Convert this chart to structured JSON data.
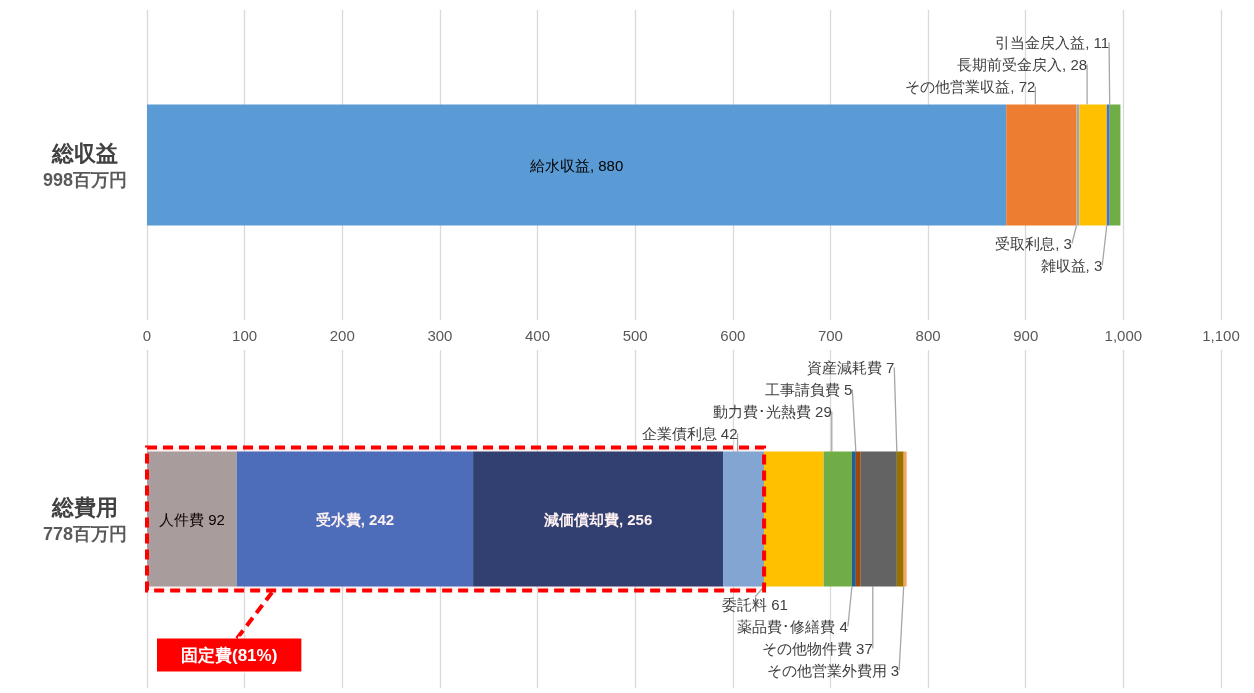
{
  "chart_data": [
    {
      "type": "bar",
      "orientation": "horizontal",
      "stacked": true,
      "categories": [
        "総収益\n998百万円"
      ],
      "xlim": [
        0,
        1100
      ],
      "xticks": [
        0,
        100,
        200,
        300,
        400,
        500,
        600,
        700,
        800,
        900,
        {
          "value": 1000,
          "label": "1,000"
        },
        {
          "value": 1100,
          "label": "1,100"
        }
      ],
      "grid": "x",
      "series": [
        {
          "color": "#5b9bd5",
          "values": [
            880
          ],
          "value_labels": [
            "給水収益, 880"
          ]
        },
        {
          "color": "#ed7d31",
          "values": [
            72
          ],
          "value_labels": [
            "その他営業収益, 72"
          ]
        },
        {
          "color": "#a5a5a5",
          "values": [
            3
          ],
          "value_labels": [
            "受取利息, 3"
          ]
        },
        {
          "color": "#ffc000",
          "values": [
            28
          ],
          "value_labels": [
            "長期前受金戻入, 28"
          ]
        },
        {
          "color": "#4472c4",
          "values": [
            3
          ],
          "value_labels": [
            "雑収益, 3"
          ]
        },
        {
          "color": "#70ad47",
          "values": [
            11
          ],
          "value_labels": [
            "引当金戻入益, 11"
          ]
        }
      ]
    },
    {
      "type": "bar",
      "orientation": "horizontal",
      "stacked": true,
      "categories": [
        "総費用\n778百万円"
      ],
      "xlim": [
        0,
        1100
      ],
      "xticks": [
        0,
        100,
        200,
        300,
        400,
        500,
        600,
        700,
        800,
        900,
        1000,
        1100
      ],
      "tick_labels": "y",
      "grid": "x",
      "bands": [
        {
          "axis": "x",
          "from": 0,
          "to": 632,
          "label": "固定費(81%)",
          "color": "#ff0000"
        }
      ],
      "series": [
        {
          "color": "#a5a5a5",
          "values": [
            92
          ],
          "value_labels": [
            "人件費 92"
          ]
        },
        {
          "color": "#4472c4",
          "values": [
            242
          ],
          "value_labels": [
            "受水費, 242"
          ]
        },
        {
          "color": "#264478",
          "values": [
            256
          ],
          "value_labels": [
            "減価償却費, 256"
          ]
        },
        {
          "color": "#7cafdd",
          "values": [
            42
          ],
          "value_labels": [
            "企業債利息 42"
          ]
        },
        {
          "color": "#ffc000",
          "values": [
            61
          ],
          "value_labels": [
            "委託料 61"
          ]
        },
        {
          "color": "#70ad47",
          "values": [
            29
          ],
          "value_labels": [
            "動力費･光熱費 29"
          ]
        },
        {
          "color": "#255e91",
          "values": [
            4
          ],
          "value_labels": [
            "薬品費･修繕費 4"
          ]
        },
        {
          "color": "#9e480e",
          "values": [
            5
          ],
          "value_labels": [
            "工事請負費 5"
          ]
        },
        {
          "color": "#636363",
          "values": [
            37
          ],
          "value_labels": [
            "その他物件費 37"
          ]
        },
        {
          "color": "#997300",
          "values": [
            7
          ],
          "value_labels": [
            "資産減耗費 7"
          ]
        },
        {
          "color": "#f4a460",
          "values": [
            3
          ],
          "value_labels": [
            "その他営業外費用 3"
          ]
        }
      ]
    }
  ]
}
